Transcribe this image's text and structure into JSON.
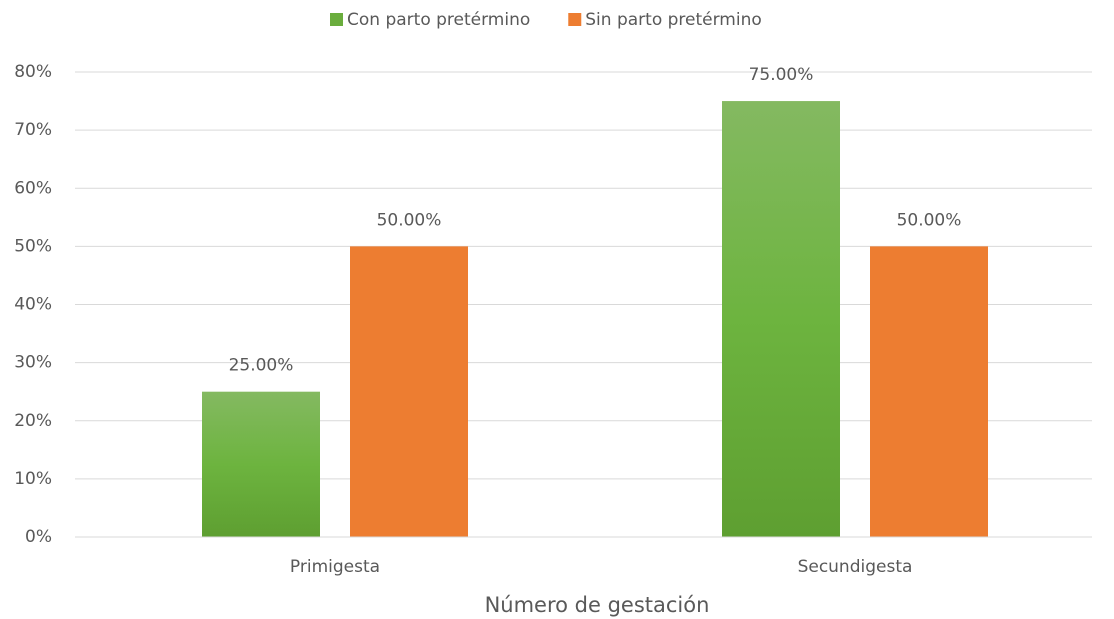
{
  "chart_data": {
    "type": "bar",
    "x_label": "Número de gestación",
    "categories": [
      "Primigesta",
      "Secundigesta"
    ],
    "series": [
      {
        "name": "Con parto pretérmino",
        "color": "#6aad3d",
        "values": [
          25,
          75
        ],
        "value_labels": [
          "25.00%",
          "75.00%"
        ]
      },
      {
        "name": "Sin parto pretérmino",
        "color": "#ed7d31",
        "values": [
          50,
          50
        ],
        "value_labels": [
          "50.00%",
          "50.00%"
        ]
      }
    ],
    "ylim": [
      0,
      80
    ],
    "yticks": [
      {
        "value": 0,
        "label": "0%"
      },
      {
        "value": 10,
        "label": "10%"
      },
      {
        "value": 20,
        "label": "20%"
      },
      {
        "value": 30,
        "label": "30%"
      },
      {
        "value": 40,
        "label": "40%"
      },
      {
        "value": 50,
        "label": "50%"
      },
      {
        "value": 60,
        "label": "60%"
      },
      {
        "value": 70,
        "label": "70%"
      },
      {
        "value": 80,
        "label": "80%"
      }
    ],
    "grid": true,
    "legend": "top"
  }
}
